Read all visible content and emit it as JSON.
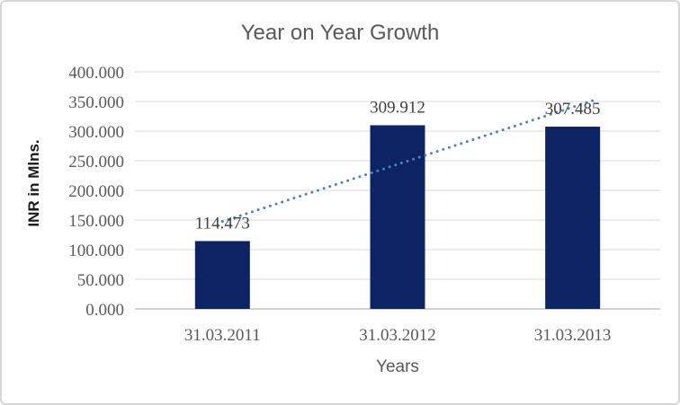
{
  "window": {
    "background": "#ffffff",
    "border_color": "#d6d6d6"
  },
  "chart_data": {
    "type": "bar",
    "title": "Year on Year Growth",
    "xlabel": "Years",
    "ylabel": "INR in Mlns.",
    "categories": [
      "31.03.2011",
      "31.03.2012",
      "31.03.2013"
    ],
    "values": [
      114.473,
      309.912,
      307.485
    ],
    "data_labels": [
      "114.473",
      "309.912",
      "307.485"
    ],
    "yticks": [
      0,
      50,
      100,
      150,
      200,
      250,
      300,
      350,
      400
    ],
    "ytick_labels": [
      "0.000",
      "50.000",
      "100.000",
      "150.000",
      "200.000",
      "250.000",
      "300.000",
      "350.000",
      "400.000"
    ],
    "ylim": [
      0,
      400
    ],
    "grid": true,
    "legend": "none",
    "trendline": {
      "type": "linear",
      "style": "dotted",
      "color": "#4f81bd",
      "start_value": 147.451,
      "end_value": 340.463
    },
    "colors": {
      "bar": "#0c2464",
      "gridline": "#d9d9d9",
      "axis_line": "#d0d0d0",
      "title_text": "#595959",
      "tick_text": "#595959",
      "data_label_text": "#404040",
      "axis_title_text": "#1a1a1a"
    }
  }
}
